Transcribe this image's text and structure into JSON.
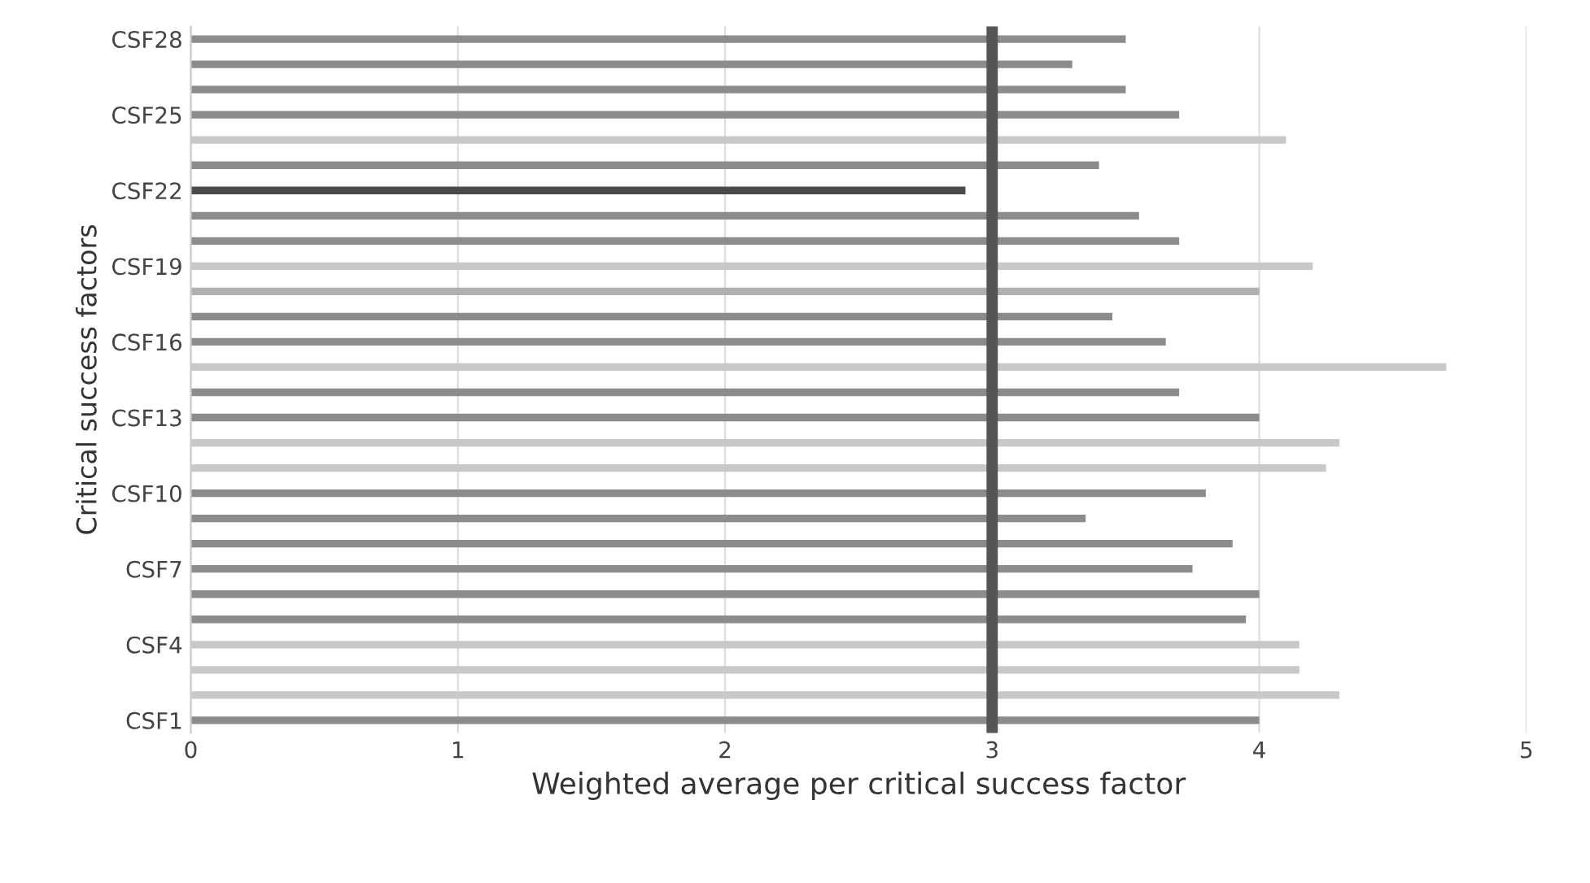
{
  "chart_data": {
    "type": "bar",
    "orientation": "horizontal",
    "xlabel": "Weighted average per critical success factor",
    "ylabel": "Critical success factors",
    "categories": [
      "CSF28",
      null,
      null,
      "CSF25",
      null,
      null,
      "CSF22",
      null,
      null,
      "CSF19",
      null,
      null,
      "CSF16",
      null,
      null,
      "CSF13",
      null,
      null,
      "CSF10",
      null,
      null,
      "CSF7",
      null,
      null,
      "CSF4",
      null,
      null,
      "CSF1"
    ],
    "values": [
      3.5,
      3.3,
      3.5,
      3.7,
      4.1,
      3.4,
      2.9,
      3.55,
      3.7,
      4.2,
      4.0,
      3.45,
      3.65,
      4.7,
      3.7,
      4.0,
      4.3,
      4.25,
      3.8,
      3.35,
      3.9,
      3.75,
      4.0,
      3.95,
      4.15,
      4.15,
      4.3,
      4.0
    ],
    "colors": [
      "#8c8c8c",
      "#8c8c8c",
      "#8c8c8c",
      "#8c8c8c",
      "#c8c8c8",
      "#8c8c8c",
      "#4a4a4a",
      "#8c8c8c",
      "#8c8c8c",
      "#c8c8c8",
      "#b0b0b0",
      "#8c8c8c",
      "#8c8c8c",
      "#c8c8c8",
      "#8c8c8c",
      "#8c8c8c",
      "#c8c8c8",
      "#c8c8c8",
      "#8c8c8c",
      "#8c8c8c",
      "#8c8c8c",
      "#8c8c8c",
      "#8c8c8c",
      "#8c8c8c",
      "#c8c8c8",
      "#c8c8c8",
      "#c8c8c8",
      "#8c8c8c"
    ],
    "xlim": [
      0,
      5
    ],
    "xticks": [
      0,
      1,
      2,
      3,
      4,
      5
    ],
    "ref_lines": [
      {
        "axis": "x",
        "value": 3,
        "color": "#555555"
      }
    ],
    "grid": "x"
  }
}
